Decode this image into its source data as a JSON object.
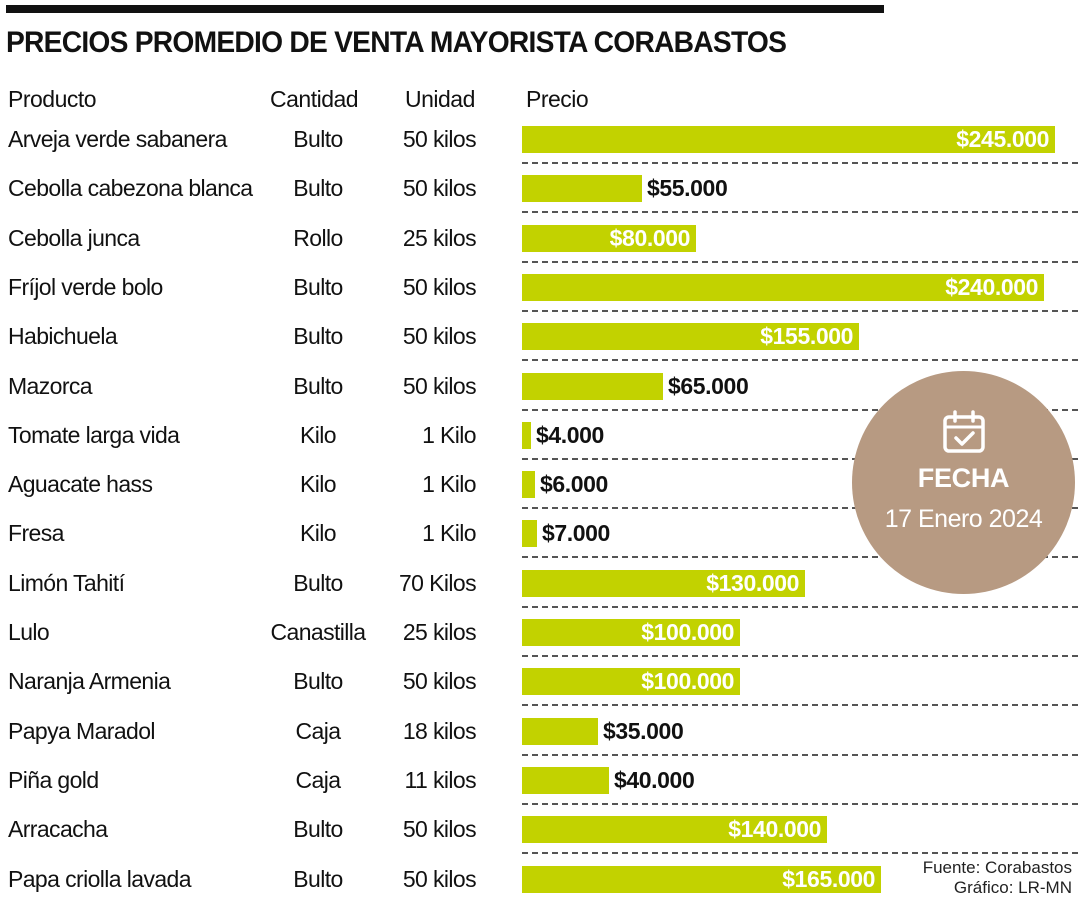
{
  "chart_data": {
    "type": "table",
    "title": "PRECIOS PROMEDIO DE VENTA MAYORISTA CORABASTOS",
    "columns": [
      "Producto",
      "Cantidad",
      "Unidad",
      "Precio"
    ],
    "value_max": 245000,
    "rows": [
      {
        "producto": "Arveja verde sabanera",
        "cantidad": "Bulto",
        "unidad": "50 kilos",
        "precio": 245000,
        "precio_label": "$245.000"
      },
      {
        "producto": "Cebolla cabezona blanca",
        "cantidad": "Bulto",
        "unidad": "50 kilos",
        "precio": 55000,
        "precio_label": "$55.000"
      },
      {
        "producto": "Cebolla junca",
        "cantidad": "Rollo",
        "unidad": "25 kilos",
        "precio": 80000,
        "precio_label": "$80.000"
      },
      {
        "producto": "Fríjol verde bolo",
        "cantidad": "Bulto",
        "unidad": "50 kilos",
        "precio": 240000,
        "precio_label": "$240.000"
      },
      {
        "producto": "Habichuela",
        "cantidad": "Bulto",
        "unidad": "50 kilos",
        "precio": 155000,
        "precio_label": "$155.000"
      },
      {
        "producto": "Mazorca",
        "cantidad": "Bulto",
        "unidad": "50 kilos",
        "precio": 65000,
        "precio_label": "$65.000"
      },
      {
        "producto": "Tomate larga vida",
        "cantidad": "Kilo",
        "unidad": "1 Kilo",
        "precio": 4000,
        "precio_label": "$4.000"
      },
      {
        "producto": "Aguacate hass",
        "cantidad": "Kilo",
        "unidad": "1 Kilo",
        "precio": 6000,
        "precio_label": "$6.000"
      },
      {
        "producto": "Fresa",
        "cantidad": "Kilo",
        "unidad": "1 Kilo",
        "precio": 7000,
        "precio_label": "$7.000"
      },
      {
        "producto": "Limón Tahití",
        "cantidad": "Bulto",
        "unidad": "70 Kilos",
        "precio": 130000,
        "precio_label": "$130.000"
      },
      {
        "producto": "Lulo",
        "cantidad": "Canastilla",
        "unidad": "25 kilos",
        "precio": 100000,
        "precio_label": "$100.000"
      },
      {
        "producto": "Naranja Armenia",
        "cantidad": "Bulto",
        "unidad": "50 kilos",
        "precio": 100000,
        "precio_label": "$100.000"
      },
      {
        "producto": "Papya Maradol",
        "cantidad": "Caja",
        "unidad": "18 kilos",
        "precio": 35000,
        "precio_label": "$35.000"
      },
      {
        "producto": "Piña gold",
        "cantidad": "Caja",
        "unidad": "11 kilos",
        "precio": 40000,
        "precio_label": "$40.000"
      },
      {
        "producto": "Arracacha",
        "cantidad": "Bulto",
        "unidad": "50 kilos",
        "precio": 140000,
        "precio_label": "$140.000"
      },
      {
        "producto": "Papa criolla lavada",
        "cantidad": "Bulto",
        "unidad": "50 kilos",
        "precio": 165000,
        "precio_label": "$165.000"
      }
    ]
  },
  "badge": {
    "icon": "calendar-check-icon",
    "label": "FECHA",
    "date": "17 Enero 2024"
  },
  "credits": {
    "source": "Fuente: Corabastos",
    "graphic": "Gráfico: LR-MN"
  },
  "colors": {
    "bar": "#c2d200",
    "badge": "#b79a82",
    "text": "#111111"
  }
}
